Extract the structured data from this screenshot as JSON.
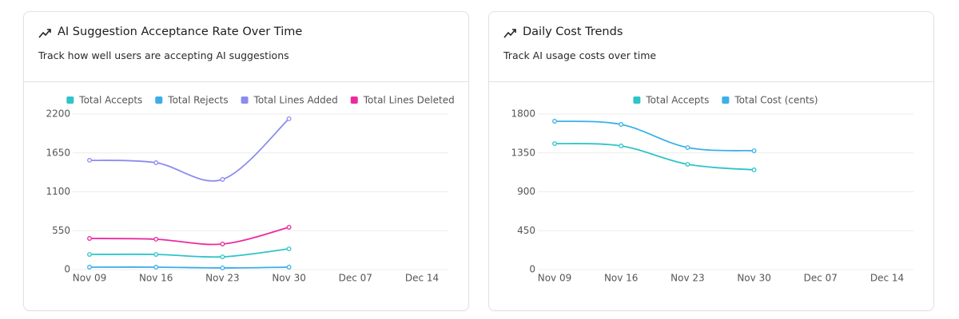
{
  "chart_data": [
    {
      "type": "line",
      "title": "AI Suggestion Acceptance Rate Over Time",
      "subtitle": "Track how well users are accepting AI suggestions",
      "categories": [
        "Nov 09",
        "Nov 16",
        "Nov 23",
        "Nov 30",
        "Dec 07",
        "Dec 14"
      ],
      "series": [
        {
          "name": "Total Accepts",
          "color": "#2ec4c8",
          "values": [
            214,
            214,
            180,
            293,
            null,
            null
          ]
        },
        {
          "name": "Total Rejects",
          "color": "#3aaee8",
          "values": [
            34,
            34,
            23,
            34,
            null,
            null
          ]
        },
        {
          "name": "Total Lines Added",
          "color": "#8b8cf0",
          "values": [
            1546,
            1512,
            1275,
            2133,
            null,
            null
          ]
        },
        {
          "name": "Total Lines Deleted",
          "color": "#ec2aa0",
          "values": [
            440,
            429,
            361,
            598,
            null,
            null
          ]
        }
      ],
      "ylim": [
        0,
        2200
      ],
      "yticks": [
        0,
        550,
        1100,
        1650,
        2200
      ],
      "grid": true,
      "legend": "top"
    },
    {
      "type": "line",
      "title": "Daily Cost Trends",
      "subtitle": "Track AI usage costs over time",
      "categories": [
        "Nov 09",
        "Nov 16",
        "Nov 23",
        "Nov 30",
        "Dec 07",
        "Dec 14"
      ],
      "series": [
        {
          "name": "Total Accepts",
          "color": "#2ec4c8",
          "values": [
            1458,
            1431,
            1218,
            1154,
            null,
            null
          ]
        },
        {
          "name": "Total Cost (cents)",
          "color": "#3ab0e8",
          "values": [
            1717,
            1680,
            1412,
            1375,
            null,
            null
          ]
        }
      ],
      "ylim": [
        0,
        1800
      ],
      "yticks": [
        0,
        450,
        900,
        1350,
        1800
      ],
      "grid": true,
      "legend": "top"
    }
  ]
}
